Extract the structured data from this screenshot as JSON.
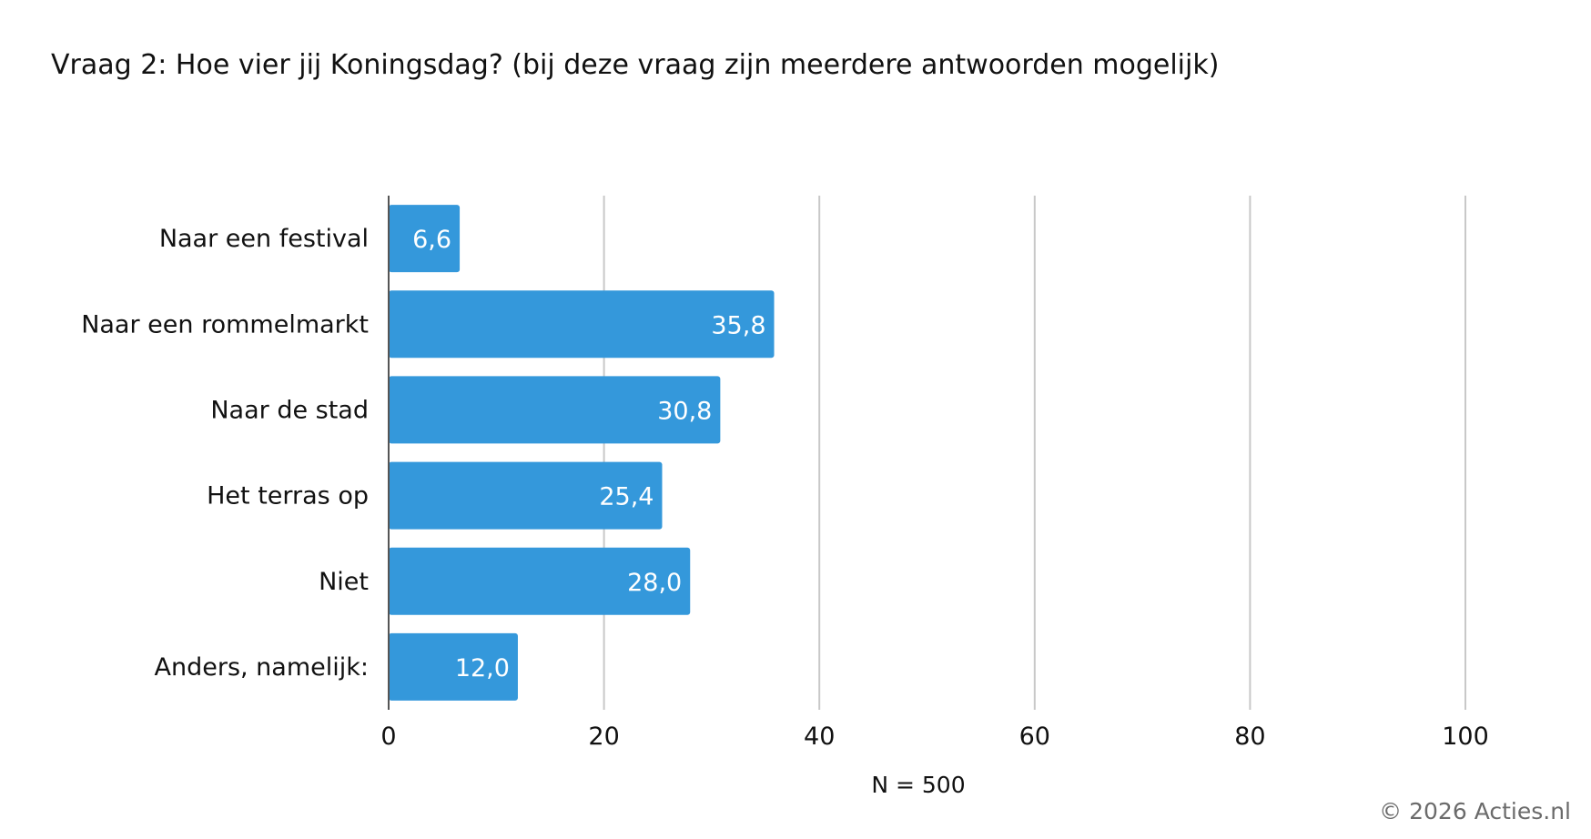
{
  "title": "Vraag 2: Hoe vier jij Koningsdag? (bij deze vraag zijn meerdere antwoorden mogelijk)",
  "footnote": "N = 500",
  "copyright": "© 2026 Acties.nl",
  "colors": {
    "bar": "#3498db",
    "grid": "#c8c8c8",
    "axis": "#555555"
  },
  "chart_data": {
    "type": "bar",
    "orientation": "horizontal",
    "title": "Vraag 2: Hoe vier jij Koningsdag? (bij deze vraag zijn meerdere antwoorden mogelijk)",
    "categories": [
      "Naar een festival",
      "Naar een rommelmarkt",
      "Naar de stad",
      "Het terras op",
      "Niet",
      "Anders, namelijk:"
    ],
    "values": [
      6.6,
      35.8,
      30.8,
      25.4,
      28.0,
      12.0
    ],
    "value_labels": [
      "6,6",
      "35,8",
      "30,8",
      "25,4",
      "28,0",
      "12,0"
    ],
    "xlim": [
      0,
      100
    ],
    "xticks": [
      0,
      20,
      40,
      60,
      80,
      100
    ],
    "xlabel": "N = 500",
    "ylabel": "",
    "grid": true,
    "legend": "none"
  }
}
